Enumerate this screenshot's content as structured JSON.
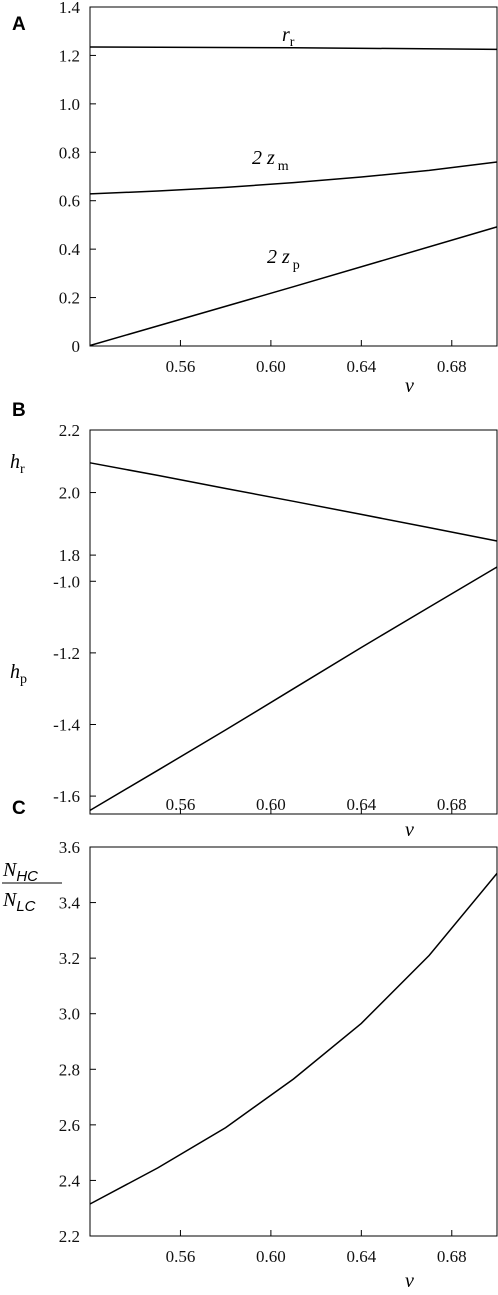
{
  "chart_data": [
    {
      "panel": "A",
      "type": "line",
      "xlabel": "v",
      "xlim": [
        0.52,
        0.7
      ],
      "ylim": [
        0,
        1.4
      ],
      "xticks": [
        "0.56",
        "0.60",
        "0.64",
        "0.68"
      ],
      "yticks": [
        "0",
        "0.2",
        "0.4",
        "0.6",
        "0.8",
        "1.0",
        "1.2",
        "1.4"
      ],
      "series": [
        {
          "name": "r",
          "sub": "r",
          "prefix": "",
          "x": [
            0.52,
            0.61,
            0.7
          ],
          "y": [
            1.235,
            1.232,
            1.225
          ]
        },
        {
          "name": "2 z",
          "sub": "m",
          "prefix": "2 ",
          "x": [
            0.52,
            0.55,
            0.58,
            0.61,
            0.64,
            0.67,
            0.7
          ],
          "y": [
            0.628,
            0.64,
            0.655,
            0.675,
            0.698,
            0.725,
            0.76
          ]
        },
        {
          "name": "2 z",
          "sub": "p",
          "prefix": "2 ",
          "x": [
            0.52,
            0.61,
            0.7
          ],
          "y": [
            0.002,
            0.245,
            0.492
          ]
        }
      ]
    },
    {
      "panel": "B",
      "type": "line",
      "xlabel": "v",
      "xlim": [
        0.52,
        0.7
      ],
      "xticks": [
        "0.56",
        "0.60",
        "0.64",
        "0.68"
      ],
      "upper": {
        "ylim": [
          1.73,
          2.2
        ],
        "yticks": [
          "1.8",
          "2.0",
          "2.2"
        ],
        "series": {
          "name": "h",
          "sub": "r",
          "x": [
            0.52,
            0.55,
            0.58,
            0.61,
            0.64,
            0.67,
            0.7
          ],
          "y": [
            2.095,
            2.055,
            2.013,
            1.972,
            1.93,
            1.888,
            1.845
          ]
        }
      },
      "lower": {
        "ylim": [
          -1.65,
          -0.935
        ],
        "yticks": [
          "-1.0",
          "-1.2",
          "-1.4",
          "-1.6"
        ],
        "series": {
          "name": "h",
          "sub": "p",
          "x": [
            0.52,
            0.55,
            0.58,
            0.61,
            0.64,
            0.67,
            0.7
          ],
          "y": [
            -1.64,
            -1.528,
            -1.415,
            -1.3,
            -1.185,
            -1.072,
            -0.96
          ]
        }
      }
    },
    {
      "panel": "C",
      "type": "line",
      "xlabel": "v",
      "xlim": [
        0.52,
        0.7
      ],
      "ylim": [
        2.2,
        3.6
      ],
      "xticks": [
        "0.56",
        "0.60",
        "0.64",
        "0.68"
      ],
      "yticks": [
        "2.2",
        "2.4",
        "2.6",
        "2.8",
        "3.0",
        "3.2",
        "3.4",
        "3.6"
      ],
      "ylabel_num": "N",
      "ylabel_num_sub": "HC",
      "ylabel_den": "N",
      "ylabel_den_sub": "LC",
      "series": [
        {
          "name": "N_HC / N_LC",
          "x": [
            0.52,
            0.55,
            0.58,
            0.61,
            0.64,
            0.67,
            0.7
          ],
          "y": [
            2.315,
            2.445,
            2.59,
            2.765,
            2.965,
            3.21,
            3.505
          ]
        }
      ]
    }
  ]
}
